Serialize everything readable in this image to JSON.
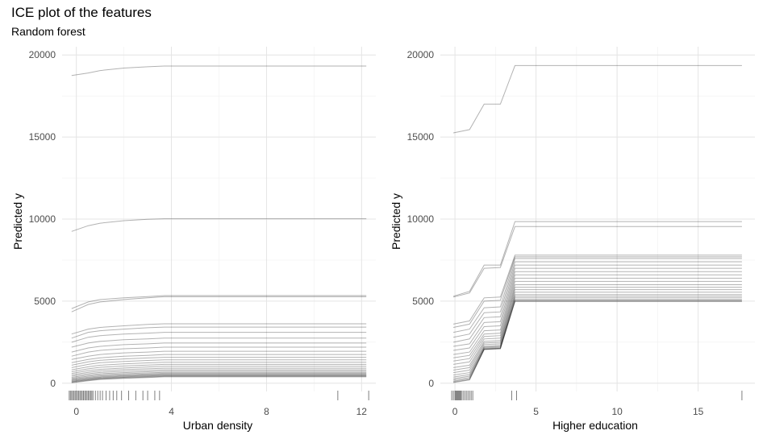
{
  "title": "ICE plot of the features",
  "subtitle": "Random forest",
  "chart_data": [
    {
      "type": "line",
      "xlabel": "Urban density",
      "ylabel": "Predicted y",
      "xlim": [
        -0.6,
        12.6
      ],
      "ylim": [
        -500,
        20500
      ],
      "x_ticks": [
        0,
        4,
        8,
        12
      ],
      "y_ticks": [
        0,
        5000,
        10000,
        15000,
        20000
      ],
      "grid": true,
      "x": [
        -0.2,
        0.5,
        1.0,
        2.0,
        3.0,
        3.7,
        6.0,
        9.0,
        12.2
      ],
      "series": [
        {
          "values": [
            18750,
            18900,
            19050,
            19200,
            19280,
            19320,
            19320,
            19320,
            19320
          ]
        },
        {
          "values": [
            9250,
            9600,
            9750,
            9900,
            9990,
            10020,
            10020,
            10020,
            10020
          ]
        },
        {
          "values": [
            4550,
            4950,
            5100,
            5200,
            5280,
            5340,
            5340,
            5340,
            5340
          ]
        },
        {
          "values": [
            4350,
            4800,
            4950,
            5100,
            5200,
            5270,
            5270,
            5270,
            5270
          ]
        },
        {
          "values": [
            3000,
            3300,
            3400,
            3500,
            3580,
            3620,
            3620,
            3620,
            3620
          ]
        },
        {
          "values": [
            2750,
            3100,
            3200,
            3300,
            3380,
            3420,
            3420,
            3420,
            3420
          ]
        },
        {
          "values": [
            2500,
            2800,
            2900,
            3000,
            3050,
            3100,
            3100,
            3100,
            3100
          ]
        },
        {
          "values": [
            2200,
            2450,
            2550,
            2650,
            2700,
            2750,
            2750,
            2750,
            2750
          ]
        },
        {
          "values": [
            1900,
            2150,
            2250,
            2350,
            2400,
            2450,
            2450,
            2450,
            2450
          ]
        },
        {
          "values": [
            1650,
            1900,
            2000,
            2100,
            2150,
            2200,
            2200,
            2200,
            2200
          ]
        },
        {
          "values": [
            1450,
            1650,
            1750,
            1850,
            1900,
            1950,
            1950,
            1950,
            1950
          ]
        },
        {
          "values": [
            1250,
            1450,
            1550,
            1650,
            1700,
            1750,
            1750,
            1750,
            1750
          ]
        },
        {
          "values": [
            1100,
            1300,
            1400,
            1480,
            1540,
            1580,
            1580,
            1580,
            1580
          ]
        },
        {
          "values": [
            950,
            1150,
            1250,
            1330,
            1390,
            1430,
            1430,
            1430,
            1430
          ]
        },
        {
          "values": [
            820,
            1000,
            1100,
            1180,
            1240,
            1280,
            1280,
            1280,
            1280
          ]
        },
        {
          "values": [
            700,
            880,
            970,
            1050,
            1110,
            1150,
            1150,
            1150,
            1150
          ]
        },
        {
          "values": [
            600,
            770,
            850,
            930,
            990,
            1030,
            1030,
            1030,
            1030
          ]
        },
        {
          "values": [
            510,
            670,
            750,
            830,
            880,
            920,
            920,
            920,
            920
          ]
        },
        {
          "values": [
            430,
            580,
            660,
            730,
            780,
            820,
            820,
            820,
            820
          ]
        },
        {
          "values": [
            360,
            500,
            580,
            650,
            700,
            740,
            740,
            740,
            740
          ]
        },
        {
          "values": [
            300,
            430,
            510,
            580,
            630,
            670,
            670,
            670,
            670
          ]
        },
        {
          "values": [
            250,
            370,
            450,
            520,
            570,
            610,
            610,
            610,
            610
          ]
        },
        {
          "values": [
            200,
            320,
            400,
            470,
            520,
            560,
            560,
            560,
            560
          ]
        },
        {
          "values": [
            160,
            280,
            360,
            430,
            480,
            520,
            520,
            520,
            520
          ]
        },
        {
          "values": [
            120,
            240,
            320,
            390,
            440,
            480,
            480,
            480,
            480
          ]
        },
        {
          "values": [
            90,
            210,
            290,
            360,
            410,
            450,
            450,
            450,
            450
          ]
        },
        {
          "values": [
            60,
            180,
            260,
            330,
            380,
            420,
            420,
            420,
            420
          ]
        },
        {
          "values": [
            30,
            150,
            230,
            300,
            350,
            390,
            390,
            390,
            390
          ]
        }
      ],
      "rug": [
        -0.3,
        -0.25,
        -0.2,
        -0.15,
        -0.1,
        -0.05,
        0,
        0.05,
        0.1,
        0.15,
        0.2,
        0.25,
        0.3,
        0.35,
        0.4,
        0.45,
        0.5,
        0.55,
        0.6,
        0.65,
        0.7,
        0.8,
        0.9,
        1.0,
        1.1,
        1.25,
        1.4,
        1.55,
        1.7,
        1.9,
        2.2,
        2.5,
        2.8,
        3.0,
        3.3,
        3.5,
        11.0,
        12.3
      ]
    },
    {
      "type": "line",
      "xlabel": "Higher education",
      "ylabel": "Predicted y",
      "xlim": [
        -0.9,
        18.5
      ],
      "ylim": [
        -500,
        20500
      ],
      "x_ticks": [
        0,
        5,
        10,
        15
      ],
      "y_ticks": [
        0,
        5000,
        10000,
        15000,
        20000
      ],
      "grid": true,
      "x": [
        -0.1,
        0.9,
        1.8,
        2.8,
        3.7,
        17.7
      ],
      "series": [
        {
          "values": [
            15250,
            15450,
            17000,
            17000,
            19350,
            19350
          ]
        },
        {
          "values": [
            5300,
            5600,
            7200,
            7200,
            9850,
            9850
          ]
        },
        {
          "values": [
            5250,
            5500,
            7000,
            7050,
            9550,
            9550
          ]
        },
        {
          "values": [
            3600,
            3800,
            5200,
            5250,
            7800,
            7800
          ]
        },
        {
          "values": [
            3400,
            3600,
            5000,
            5050,
            7700,
            7700
          ]
        },
        {
          "values": [
            3100,
            3300,
            4600,
            4650,
            7600,
            7600
          ]
        },
        {
          "values": [
            2800,
            3000,
            4300,
            4350,
            7400,
            7400
          ]
        },
        {
          "values": [
            2500,
            2700,
            4000,
            4050,
            7200,
            7200
          ]
        },
        {
          "values": [
            2250,
            2400,
            3700,
            3750,
            7000,
            7000
          ]
        },
        {
          "values": [
            2000,
            2150,
            3450,
            3500,
            6800,
            6800
          ]
        },
        {
          "values": [
            1750,
            1900,
            3200,
            3250,
            6600,
            6600
          ]
        },
        {
          "values": [
            1550,
            1700,
            3000,
            3050,
            6400,
            6400
          ]
        },
        {
          "values": [
            1350,
            1500,
            2850,
            2900,
            6200,
            6200
          ]
        },
        {
          "values": [
            1150,
            1300,
            2700,
            2750,
            6000,
            6000
          ]
        },
        {
          "values": [
            950,
            1100,
            2550,
            2600,
            5850,
            5850
          ]
        },
        {
          "values": [
            800,
            950,
            2450,
            2500,
            5700,
            5700
          ]
        },
        {
          "values": [
            650,
            800,
            2350,
            2400,
            5550,
            5550
          ]
        },
        {
          "values": [
            500,
            650,
            2250,
            2300,
            5400,
            5400
          ]
        },
        {
          "values": [
            380,
            530,
            2200,
            2250,
            5300,
            5300
          ]
        },
        {
          "values": [
            280,
            430,
            2150,
            2200,
            5200,
            5200
          ]
        },
        {
          "values": [
            200,
            350,
            2100,
            2150,
            5100,
            5100
          ]
        },
        {
          "values": [
            130,
            280,
            2080,
            2130,
            5050,
            5050
          ]
        },
        {
          "values": [
            80,
            230,
            2060,
            2110,
            5000,
            5000
          ]
        },
        {
          "values": [
            40,
            200,
            2050,
            2100,
            4980,
            4980
          ]
        }
      ],
      "rug": [
        -0.2,
        -0.1,
        0,
        0.05,
        0.1,
        0.15,
        0.2,
        0.25,
        0.3,
        0.35,
        0.4,
        0.5,
        0.6,
        0.7,
        0.8,
        0.9,
        1.0,
        1.1,
        3.5,
        3.8,
        17.7
      ]
    }
  ]
}
